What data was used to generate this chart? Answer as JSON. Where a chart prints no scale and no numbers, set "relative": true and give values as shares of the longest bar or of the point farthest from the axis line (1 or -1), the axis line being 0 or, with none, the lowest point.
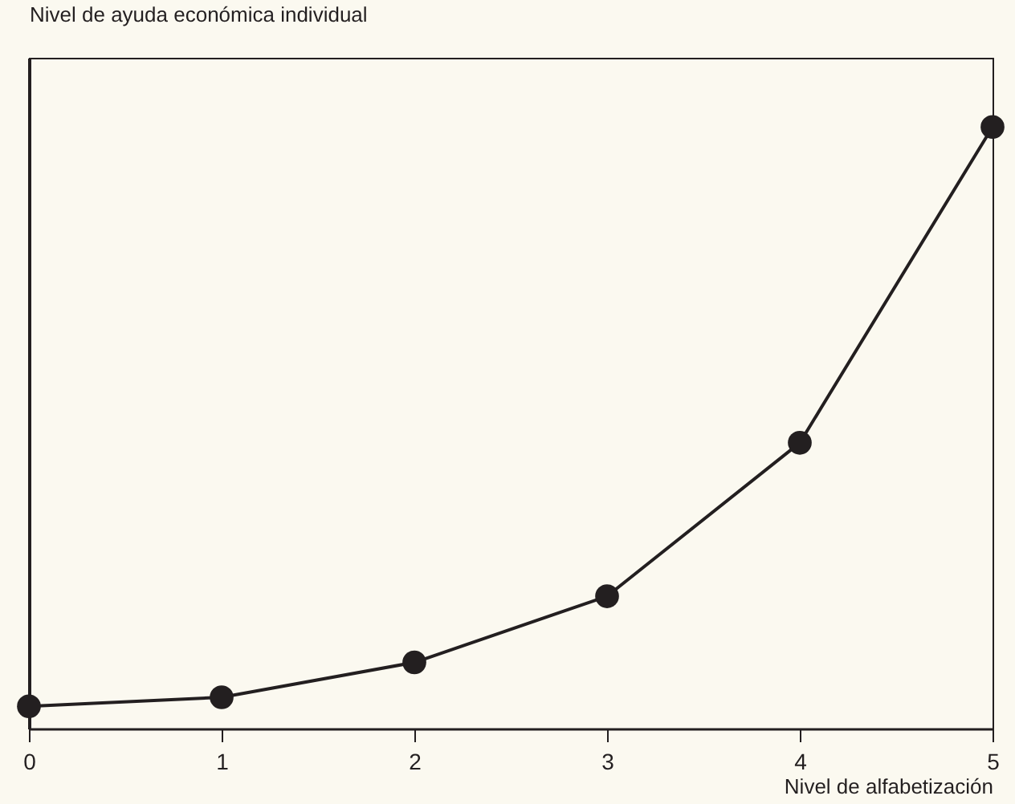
{
  "chart_data": {
    "type": "line",
    "relative": true,
    "xlabel": "Nivel de alfabetización",
    "ylabel": "Nivel de ayuda económica individual",
    "x": [
      0,
      1,
      2,
      3,
      4,
      5
    ],
    "xlim": [
      0,
      5
    ],
    "xticks": [
      0,
      1,
      2,
      3,
      4,
      5
    ],
    "series": [
      {
        "color": "#231f20",
        "values": [
          0.037,
          0.052,
          0.11,
          0.22,
          0.475,
          1
        ]
      }
    ],
    "marker": "circle",
    "line_style": "solid",
    "grid": false
  }
}
